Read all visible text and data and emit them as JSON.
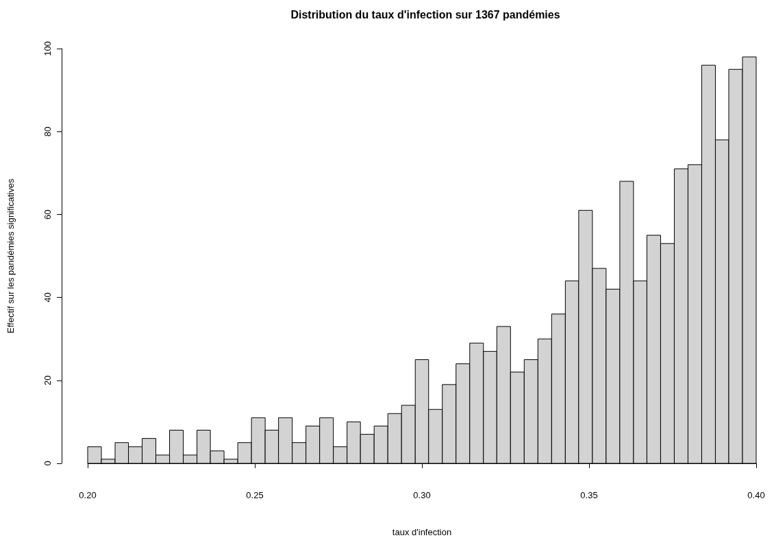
{
  "chart_data": {
    "type": "histogram",
    "title": "Distribution du taux d'infection sur 1367 pandémies",
    "xlabel": "taux d'infection",
    "ylabel": "Effectif sur les pandémies significatives",
    "bins": [
      0.2,
      0.2041,
      0.2082,
      0.2122,
      0.2163,
      0.2204,
      0.2245,
      0.2286,
      0.2327,
      0.2367,
      0.2408,
      0.2449,
      0.249,
      0.2531,
      0.2571,
      0.2612,
      0.2653,
      0.2694,
      0.2735,
      0.2776,
      0.2816,
      0.2857,
      0.2898,
      0.2939,
      0.298,
      0.302,
      0.3061,
      0.3102,
      0.3143,
      0.3184,
      0.3224,
      0.3265,
      0.3306,
      0.3347,
      0.3388,
      0.3429,
      0.3469,
      0.351,
      0.3551,
      0.3592,
      0.3633,
      0.3673,
      0.3714,
      0.3755,
      0.3796,
      0.3837,
      0.3878,
      0.3918,
      0.3959,
      0.4
    ],
    "values": [
      4,
      1,
      5,
      4,
      6,
      2,
      8,
      2,
      8,
      3,
      1,
      5,
      11,
      8,
      11,
      5,
      9,
      11,
      4,
      10,
      7,
      9,
      12,
      14,
      25,
      13,
      19,
      24,
      29,
      27,
      33,
      22,
      25,
      30,
      36,
      44,
      61,
      47,
      42,
      68,
      44,
      55,
      53,
      71,
      72,
      96,
      78,
      95,
      98
    ],
    "color": "#d3d3d3",
    "xlim": [
      0.2,
      0.4
    ],
    "xticks": [
      {
        "value": 0.2,
        "label": "0.20"
      },
      {
        "value": 0.25,
        "label": "0.25"
      },
      {
        "value": 0.3,
        "label": "0.30"
      },
      {
        "value": 0.35,
        "label": "0.35"
      },
      {
        "value": 0.4,
        "label": "0.40"
      }
    ],
    "ylim": [
      0,
      100
    ],
    "yticks": [
      0,
      20,
      40,
      60,
      80,
      100
    ],
    "grid": false
  }
}
